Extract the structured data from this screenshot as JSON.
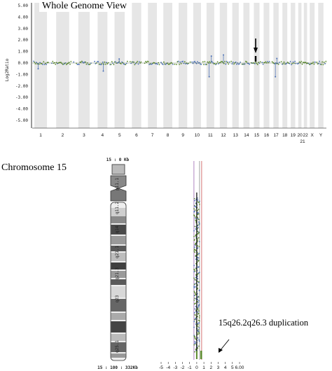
{
  "whole_genome": {
    "title": "Whole Genome View",
    "chart_data": {
      "type": "scatter",
      "title": "Whole Genome View",
      "ylabel": "Log2Ratio",
      "ylim": [
        -5,
        5
      ],
      "y_ticks": [
        "5.00",
        "4.00",
        "3.00",
        "2.00",
        "1.00",
        "0.00",
        "-1.00",
        "-2.00",
        "-3.00",
        "-4.00",
        "-5.00"
      ],
      "categories": [
        "1",
        "2",
        "3",
        "4",
        "5",
        "6",
        "7",
        "8",
        "9",
        "10",
        "11",
        "12",
        "13",
        "14",
        "15",
        "16",
        "17",
        "18",
        "19",
        "20",
        "22",
        "X",
        "Y"
      ],
      "extra_label": "21",
      "baseline": 0.0,
      "spread": 0.15,
      "outliers": [
        {
          "chromosome": "1",
          "y": -0.5
        },
        {
          "chromosome": "4",
          "y": -0.7
        },
        {
          "chromosome": "5",
          "y": 0.35
        },
        {
          "chromosome": "11",
          "y": -1.2
        },
        {
          "chromosome": "11",
          "y": 0.6
        },
        {
          "chromosome": "12",
          "y": 0.7
        },
        {
          "chromosome": "17",
          "y": -1.2
        },
        {
          "chromosome": "17",
          "y": 0.4
        }
      ],
      "arrow_at": "15"
    }
  },
  "chromosome_view": {
    "title": "Chromosome 15",
    "ideogram_top_label": "15 : 0 Kb",
    "ideogram_bottom_label": "15 : 100 : 332Kb",
    "band_labels": [
      "p11.1",
      "q11.2",
      "q14",
      "q21.1",
      "q21.3",
      "q23",
      "q25.1"
    ],
    "chart_data": {
      "type": "scatter",
      "xlabel": "",
      "x_ticks": [
        "-5",
        "-4",
        "-3",
        "-2",
        "-1",
        "0",
        "1",
        "2",
        "3",
        "4",
        "5",
        "6.00"
      ],
      "xlim": [
        -5,
        6
      ],
      "baseline": 0.0,
      "duplication_log2": 0.6,
      "annotation": "15q26.2q26.3 duplication"
    }
  },
  "colors": {
    "band_grey": "#e6e6e6",
    "point_green": "#5b8a2c",
    "point_blue": "#4a6fb5",
    "line_black": "#000000",
    "purple": "#8d4fa8",
    "red": "#c23b3b"
  }
}
